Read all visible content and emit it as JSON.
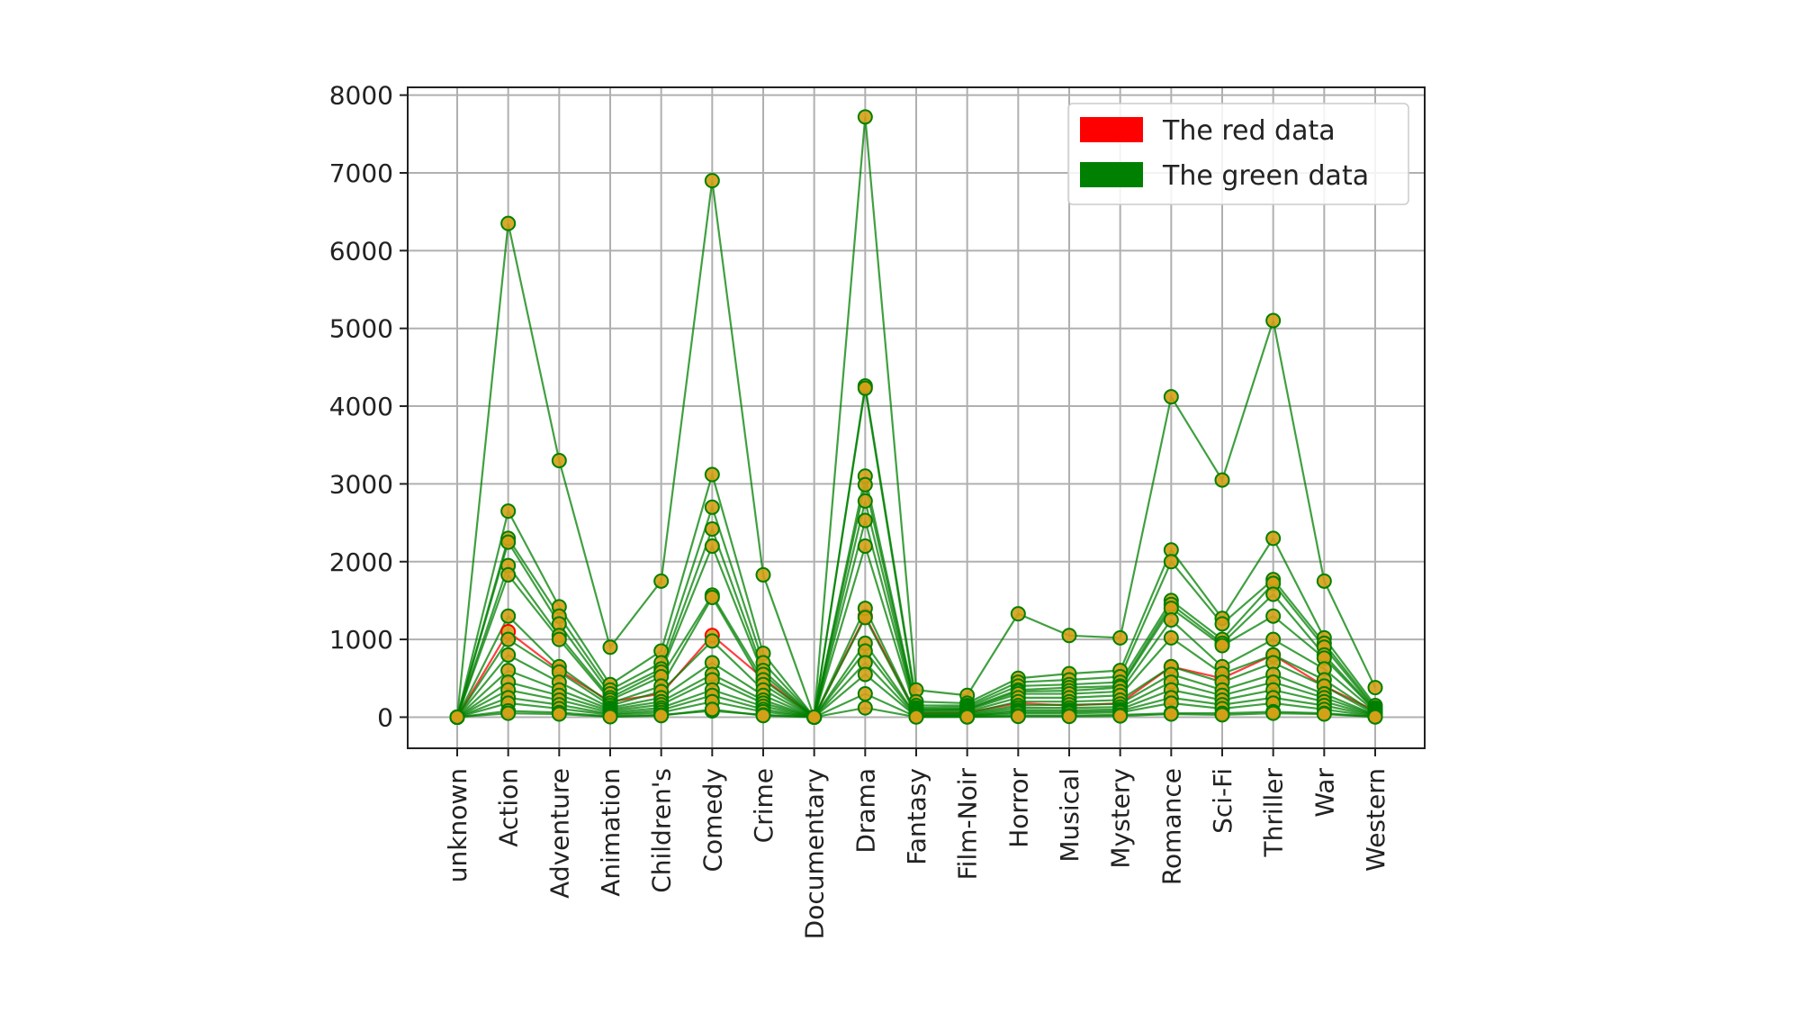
{
  "chart_data": {
    "type": "line",
    "title": "",
    "xlabel": "",
    "ylabel": "",
    "categories": [
      "unknown",
      "Action",
      "Adventure",
      "Animation",
      "Children's",
      "Comedy",
      "Crime",
      "Documentary",
      "Drama",
      "Fantasy",
      "Film-Noir",
      "Horror",
      "Musical",
      "Mystery",
      "Romance",
      "Sci-Fi",
      "Thriller",
      "War",
      "Western"
    ],
    "ylim": [
      -400,
      8100
    ],
    "yticks": [
      0,
      1000,
      2000,
      3000,
      4000,
      5000,
      6000,
      7000,
      8000
    ],
    "grid": true,
    "legend_position": "top-right",
    "marker_fill": "#d4a017",
    "legend": [
      {
        "label": "The red data",
        "color": "#ff0000"
      },
      {
        "label": "The green data",
        "color": "#008000"
      }
    ],
    "series": [
      {
        "group": "red",
        "color": "#ff0000",
        "values": [
          0,
          1100,
          600,
          200,
          300,
          1050,
          500,
          0,
          1300,
          50,
          60,
          180,
          150,
          180,
          650,
          500,
          800,
          400,
          80
        ]
      },
      {
        "group": "green",
        "color": "#008000",
        "values": [
          0,
          6350,
          3300,
          900,
          1750,
          6900,
          1830,
          0,
          7720,
          350,
          280,
          1330,
          1050,
          1020,
          4120,
          3050,
          5100,
          1750,
          380
        ]
      },
      {
        "group": "green",
        "color": "#008000",
        "values": [
          0,
          2650,
          1420,
          420,
          850,
          3120,
          820,
          0,
          4260,
          200,
          180,
          500,
          560,
          600,
          2150,
          1270,
          2300,
          1020,
          150
        ]
      },
      {
        "group": "green",
        "color": "#008000",
        "values": [
          0,
          2300,
          1300,
          350,
          700,
          2700,
          700,
          0,
          4230,
          150,
          150,
          450,
          480,
          520,
          2000,
          1200,
          1770,
          950,
          120
        ]
      },
      {
        "group": "green",
        "color": "#008000",
        "values": [
          0,
          2250,
          1200,
          300,
          620,
          2420,
          600,
          0,
          3100,
          120,
          130,
          400,
          420,
          450,
          1500,
          1000,
          1720,
          900,
          100
        ]
      },
      {
        "group": "green",
        "color": "#008000",
        "values": [
          0,
          1950,
          1050,
          250,
          580,
          2200,
          550,
          0,
          2990,
          100,
          110,
          350,
          380,
          400,
          1450,
          950,
          1580,
          800,
          90
        ]
      },
      {
        "group": "green",
        "color": "#008000",
        "values": [
          0,
          1830,
          1000,
          220,
          520,
          1570,
          480,
          0,
          2780,
          90,
          100,
          330,
          340,
          380,
          1400,
          920,
          1300,
          760,
          80
        ]
      },
      {
        "group": "green",
        "color": "#008000",
        "values": [
          0,
          1300,
          650,
          180,
          400,
          1540,
          420,
          0,
          2530,
          80,
          90,
          300,
          300,
          330,
          1250,
          650,
          1000,
          620,
          70
        ]
      },
      {
        "group": "green",
        "color": "#008000",
        "values": [
          0,
          1000,
          580,
          150,
          330,
          980,
          350,
          0,
          2200,
          60,
          70,
          250,
          250,
          280,
          1020,
          560,
          800,
          480,
          50
        ]
      },
      {
        "group": "green",
        "color": "#008000",
        "values": [
          0,
          800,
          450,
          120,
          250,
          700,
          280,
          0,
          1400,
          40,
          50,
          200,
          200,
          220,
          650,
          450,
          700,
          400,
          40
        ]
      },
      {
        "group": "green",
        "color": "#008000",
        "values": [
          0,
          600,
          350,
          100,
          200,
          550,
          220,
          0,
          1280,
          30,
          40,
          150,
          160,
          170,
          550,
          350,
          550,
          300,
          30
        ]
      },
      {
        "group": "green",
        "color": "#008000",
        "values": [
          0,
          450,
          280,
          80,
          160,
          480,
          180,
          0,
          950,
          20,
          30,
          120,
          120,
          130,
          450,
          280,
          450,
          250,
          25
        ]
      },
      {
        "group": "green",
        "color": "#008000",
        "values": [
          0,
          350,
          220,
          60,
          120,
          350,
          140,
          0,
          850,
          15,
          20,
          90,
          90,
          100,
          350,
          220,
          350,
          200,
          20
        ]
      },
      {
        "group": "green",
        "color": "#008000",
        "values": [
          0,
          250,
          160,
          40,
          90,
          280,
          100,
          0,
          700,
          10,
          15,
          70,
          70,
          80,
          250,
          160,
          250,
          150,
          15
        ]
      },
      {
        "group": "green",
        "color": "#008000",
        "values": [
          0,
          180,
          110,
          30,
          60,
          200,
          70,
          0,
          550,
          8,
          10,
          50,
          50,
          60,
          180,
          110,
          180,
          100,
          10
        ]
      },
      {
        "group": "green",
        "color": "#008000",
        "values": [
          0,
          80,
          60,
          10,
          30,
          80,
          30,
          0,
          300,
          5,
          5,
          20,
          20,
          30,
          50,
          50,
          70,
          50,
          5
        ]
      },
      {
        "group": "green",
        "color": "#008000",
        "values": [
          0,
          50,
          40,
          5,
          20,
          100,
          20,
          0,
          120,
          2,
          3,
          10,
          10,
          15,
          40,
          30,
          50,
          40,
          3
        ]
      }
    ]
  }
}
